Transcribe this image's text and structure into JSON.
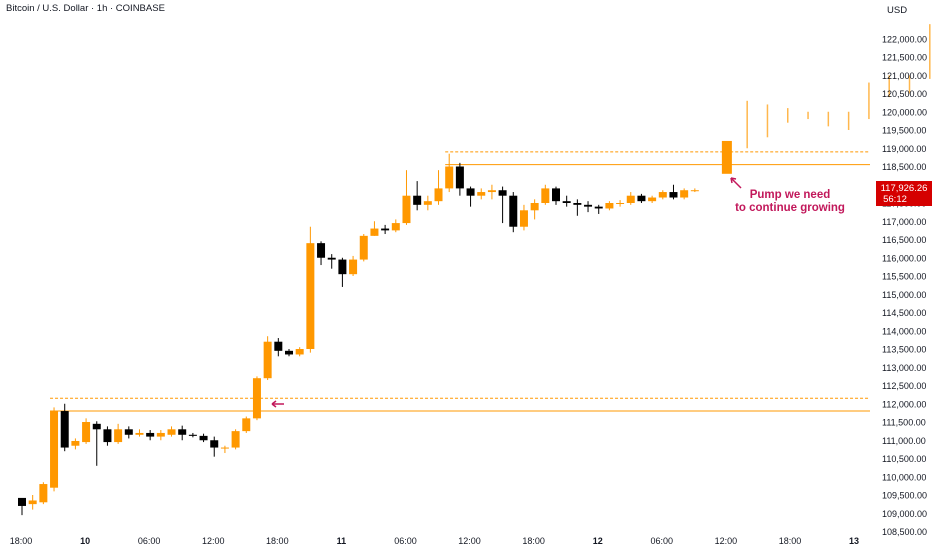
{
  "header": {
    "title": "Bitcoin / U.S. Dollar · 1h · COINBASE",
    "currency": "USD"
  },
  "colors": {
    "up": "#ff9800",
    "down": "#000000",
    "level": "#ff9800",
    "annotation": "#c2185b",
    "price_label_bg": "#d50000",
    "axis_text": "#131722",
    "projection": "#ffb74d"
  },
  "chart_data": {
    "type": "candlestick",
    "title": "Bitcoin / U.S. Dollar · 1h · COINBASE",
    "ylim": [
      108500,
      122500
    ],
    "y_ticks": [
      "108,500.00",
      "109,000.00",
      "109,500.00",
      "110,000.00",
      "110,500.00",
      "111,000.00",
      "111,500.00",
      "112,000.00",
      "112,500.00",
      "113,000.00",
      "113,500.00",
      "114,000.00",
      "114,500.00",
      "115,000.00",
      "115,500.00",
      "116,000.00",
      "116,500.00",
      "117,000.00",
      "117,500.00",
      "118,000.00",
      "118,500.00",
      "119,000.00",
      "119,500.00",
      "120,000.00",
      "120,500.00",
      "121,000.00",
      "121,500.00",
      "122,000.00"
    ],
    "x_ticks": [
      {
        "label": "18:00",
        "index": 0,
        "bold": false
      },
      {
        "label": "10",
        "index": 6,
        "bold": true
      },
      {
        "label": "06:00",
        "index": 12,
        "bold": false
      },
      {
        "label": "12:00",
        "index": 18,
        "bold": false
      },
      {
        "label": "18:00",
        "index": 24,
        "bold": false
      },
      {
        "label": "11",
        "index": 30,
        "bold": true
      },
      {
        "label": "06:00",
        "index": 36,
        "bold": false
      },
      {
        "label": "12:00",
        "index": 42,
        "bold": false
      },
      {
        "label": "18:00",
        "index": 48,
        "bold": false
      },
      {
        "label": "12",
        "index": 54,
        "bold": true
      },
      {
        "label": "06:00",
        "index": 60,
        "bold": false
      },
      {
        "label": "12:00",
        "index": 66,
        "bold": false
      },
      {
        "label": "18:00",
        "index": 72,
        "bold": false
      },
      {
        "label": "13",
        "index": 78,
        "bold": true
      }
    ],
    "candles": [
      [
        109420,
        109200,
        109400,
        108950
      ],
      [
        109250,
        109350,
        109500,
        109100
      ],
      [
        109300,
        109800,
        109850,
        109250
      ],
      [
        109700,
        111800,
        111900,
        109600
      ],
      [
        111800,
        110800,
        112000,
        110700
      ],
      [
        110850,
        110980,
        111050,
        110750
      ],
      [
        110950,
        111500,
        111600,
        110900
      ],
      [
        111450,
        111300,
        111520,
        110300
      ],
      [
        111300,
        110950,
        111380,
        110850
      ],
      [
        110950,
        111300,
        111450,
        110900
      ],
      [
        111300,
        111150,
        111380,
        111050
      ],
      [
        111150,
        111200,
        111300,
        111100
      ],
      [
        111200,
        111100,
        111280,
        111000
      ],
      [
        111100,
        111200,
        111280,
        111000
      ],
      [
        111150,
        111300,
        111380,
        111100
      ],
      [
        111300,
        111150,
        111400,
        111000
      ],
      [
        111150,
        111120,
        111200,
        111080
      ],
      [
        111120,
        111000,
        111180,
        110950
      ],
      [
        111000,
        110800,
        111100,
        110550
      ],
      [
        110800,
        110800,
        110850,
        110650
      ],
      [
        110800,
        111250,
        111300,
        110750
      ],
      [
        111250,
        111600,
        111650,
        111200
      ],
      [
        111600,
        112700,
        112750,
        111550
      ],
      [
        112700,
        113700,
        113850,
        112650
      ],
      [
        113700,
        113450,
        113800,
        113300
      ],
      [
        113450,
        113350,
        113500,
        113300
      ],
      [
        113350,
        113500,
        113550,
        113300
      ],
      [
        113500,
        116400,
        116850,
        113400
      ],
      [
        116400,
        116000,
        116450,
        115800
      ],
      [
        116000,
        115950,
        116100,
        115700
      ],
      [
        115950,
        115550,
        116000,
        115200
      ],
      [
        115550,
        115950,
        116050,
        115500
      ],
      [
        115950,
        116600,
        116650,
        115900
      ],
      [
        116600,
        116800,
        117000,
        116600
      ],
      [
        116800,
        116750,
        116900,
        116650
      ],
      [
        116750,
        116950,
        117050,
        116700
      ],
      [
        116950,
        117700,
        118400,
        116900
      ],
      [
        117700,
        117450,
        118100,
        117300
      ],
      [
        117450,
        117550,
        117700,
        117300
      ],
      [
        117550,
        117900,
        118400,
        117450
      ],
      [
        117900,
        118500,
        118850,
        117800
      ],
      [
        118500,
        117900,
        118600,
        117700
      ],
      [
        117900,
        117700,
        117950,
        117400
      ],
      [
        117700,
        117800,
        117900,
        117600
      ],
      [
        117800,
        117850,
        118000,
        117600
      ],
      [
        117850,
        117700,
        117950,
        116950
      ],
      [
        117700,
        116850,
        117800,
        116700
      ],
      [
        116850,
        117300,
        117450,
        116750
      ],
      [
        117300,
        117500,
        117600,
        117050
      ],
      [
        117500,
        117900,
        118000,
        117450
      ],
      [
        117900,
        117550,
        117950,
        117450
      ],
      [
        117550,
        117500,
        117700,
        117400
      ],
      [
        117500,
        117450,
        117600,
        117150
      ],
      [
        117450,
        117400,
        117550,
        117250
      ],
      [
        117400,
        117350,
        117450,
        117200
      ],
      [
        117350,
        117500,
        117550,
        117300
      ],
      [
        117500,
        117500,
        117580,
        117400
      ],
      [
        117500,
        117700,
        117800,
        117450
      ],
      [
        117700,
        117550,
        117750,
        117500
      ],
      [
        117550,
        117650,
        117700,
        117500
      ],
      [
        117650,
        117800,
        117850,
        117600
      ],
      [
        117800,
        117650,
        118000,
        117600
      ],
      [
        117650,
        117850,
        117900,
        117600
      ],
      [
        117850,
        117850,
        117900,
        117800
      ]
    ],
    "projection_candles": [
      [
        118300,
        119200,
        119200,
        118300
      ],
      [
        119000,
        120300,
        120300,
        119000
      ],
      [
        119300,
        120200,
        120200,
        119300
      ],
      [
        119700,
        120100,
        120100,
        119700
      ],
      [
        119800,
        120000,
        120000,
        119800
      ],
      [
        119600,
        120000,
        120000,
        119600
      ],
      [
        119500,
        120000,
        120000,
        119500
      ],
      [
        119800,
        120800,
        120800,
        119800
      ],
      [
        120400,
        121000,
        121000,
        120400
      ],
      [
        120500,
        121000,
        121000,
        120500
      ],
      [
        120900,
        122400,
        122400,
        120900
      ]
    ],
    "projection_start_index": 66,
    "levels": [
      {
        "price": 118900,
        "style": "dashed",
        "from_index": 40
      },
      {
        "price": 118550,
        "style": "solid",
        "from_index": 40
      },
      {
        "price": 112150,
        "style": "dashed",
        "from_index": 3
      },
      {
        "price": 111800,
        "style": "solid",
        "from_index": 3
      }
    ],
    "annotation": "Pump we need to continue growing",
    "annotation_lines": [
      "Pump we need",
      "to continue growing"
    ],
    "last_price": "117,926.26",
    "countdown": "56:12"
  }
}
